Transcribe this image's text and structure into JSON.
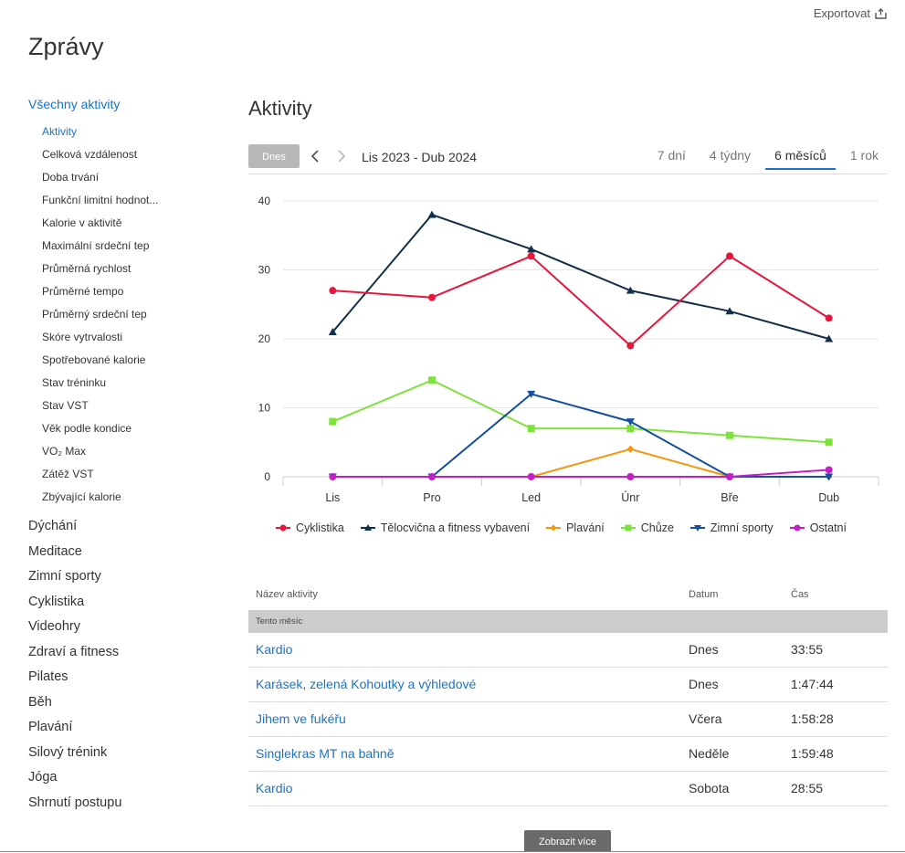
{
  "header": {
    "export_label": "Exportovat",
    "export_icon": "export-icon",
    "app_title": "Zprávy"
  },
  "sidebar": {
    "main_link": "Všechny aktivity",
    "sub_items": [
      {
        "label": "Aktivity",
        "active": true
      },
      {
        "label": "Celková vzdálenost"
      },
      {
        "label": "Doba trvání"
      },
      {
        "label": "Funkční limitní hodnot..."
      },
      {
        "label": "Kalorie v aktivitě"
      },
      {
        "label": "Maximální srdeční tep"
      },
      {
        "label": "Průměrná rychlost"
      },
      {
        "label": "Průměrné tempo"
      },
      {
        "label": "Průměrný srdeční tep"
      },
      {
        "label": "Skóre vytrvalosti"
      },
      {
        "label": "Spotřebované kalorie"
      },
      {
        "label": "Stav tréninku"
      },
      {
        "label": "Stav VST"
      },
      {
        "label": "Věk podle kondice"
      },
      {
        "label": "VO₂ Max"
      },
      {
        "label": "Zátěž VST"
      },
      {
        "label": "Zbývající kalorie"
      }
    ],
    "categories": [
      "Dýchání",
      "Meditace",
      "Zimní sporty",
      "Cyklistika",
      "Videohry",
      "Zdraví a fitness",
      "Pilates",
      "Běh",
      "Plavání",
      "Silový trénink",
      "Jóga",
      "Shrnutí postupu"
    ]
  },
  "main": {
    "title": "Aktivity",
    "today_button": "Dnes",
    "range_label": "Lis 2023 - Dub 2024",
    "tabs": [
      {
        "label": "7 dní"
      },
      {
        "label": "4 týdny"
      },
      {
        "label": "6 měsíců",
        "active": true
      },
      {
        "label": "1 rok"
      }
    ]
  },
  "chart_data": {
    "type": "line",
    "categories": [
      "Lis",
      "Pro",
      "Led",
      "Únr",
      "Bře",
      "Dub"
    ],
    "ylim": [
      0,
      40
    ],
    "yticks": [
      0,
      10,
      20,
      30,
      40
    ],
    "grid": true,
    "legend_position": "bottom",
    "series": [
      {
        "name": "Cyklistika",
        "color": "#e8163c",
        "marker": "circle",
        "values": [
          27,
          26,
          32,
          19,
          32,
          23
        ]
      },
      {
        "name": "Tělocvična a fitness vybavení",
        "color": "#112e4a",
        "marker": "triangle-up",
        "values": [
          21,
          38,
          33,
          27,
          24,
          20
        ]
      },
      {
        "name": "Plavání",
        "color": "#f5960f",
        "marker": "diamond",
        "values": [
          0,
          0,
          0,
          4,
          0,
          0
        ]
      },
      {
        "name": "Chůze",
        "color": "#7de33a",
        "marker": "square",
        "values": [
          8,
          14,
          7,
          7,
          6,
          5
        ]
      },
      {
        "name": "Zimní sporty",
        "color": "#1450a0",
        "marker": "triangle-down",
        "values": [
          0,
          0,
          12,
          8,
          0,
          0
        ]
      },
      {
        "name": "Ostatní",
        "color": "#c31fc4",
        "marker": "circle",
        "values": [
          0,
          0,
          0,
          0,
          0,
          1
        ]
      }
    ]
  },
  "table": {
    "headers": {
      "name": "Název aktivity",
      "date": "Datum",
      "time": "Čas"
    },
    "group_label": "Tento měsíc",
    "rows": [
      {
        "name": "Kardio",
        "date": "Dnes",
        "time": "33:55"
      },
      {
        "name": "Karásek, zelená Kohoutky a výhledové",
        "date": "Dnes",
        "time": "1:47:44"
      },
      {
        "name": "Jihem ve fukéřu",
        "date": "Včera",
        "time": "1:58:28"
      },
      {
        "name": "Singlekras MT na bahně",
        "date": "Neděle",
        "time": "1:59:48"
      },
      {
        "name": "Kardio",
        "date": "Sobota",
        "time": "28:55"
      }
    ]
  },
  "footer": {
    "more_button": "Zobrazit více"
  }
}
